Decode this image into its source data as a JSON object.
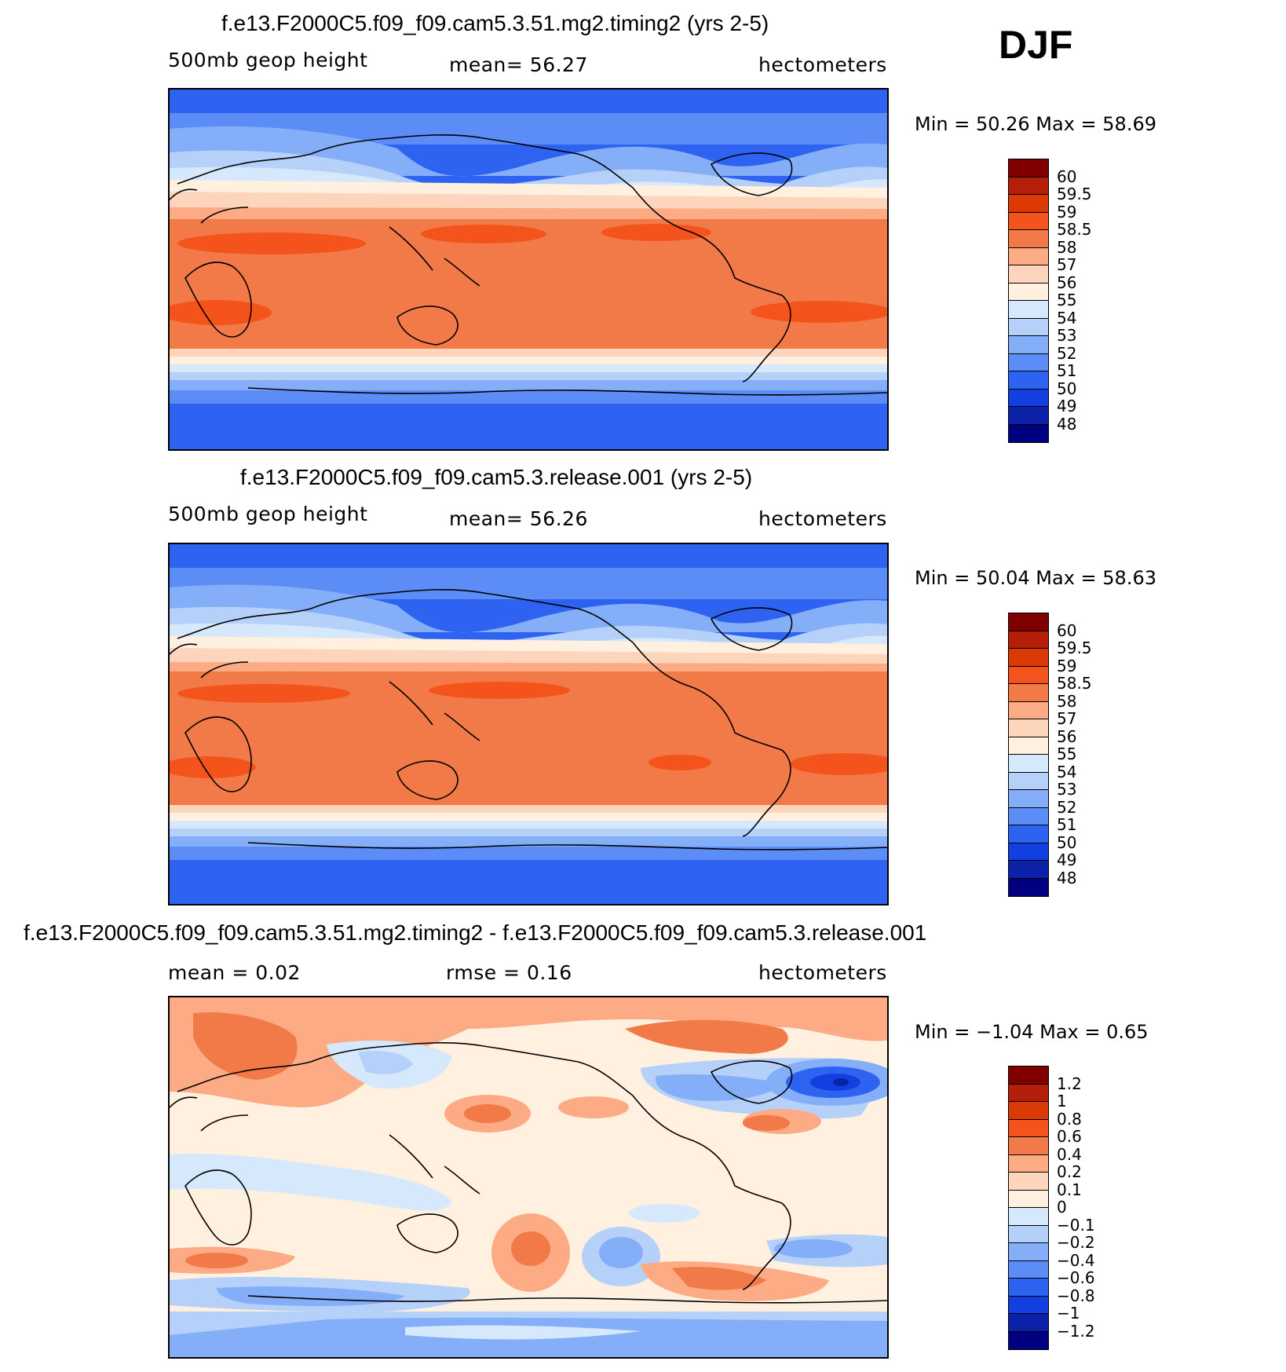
{
  "season": "DJF",
  "panels": [
    {
      "title": "f.e13.F2000C5.f09_f09.cam5.3.51.mg2.timing2 (yrs 2-5)",
      "left_label": "500mb geop height",
      "center_label": "mean=   56.27",
      "right_label": "hectometers",
      "min_max": "Min =    50.26  Max =    58.69",
      "colorbar": {
        "colors": [
          "#800000",
          "#b51f09",
          "#db3a06",
          "#f4541b",
          "#f27a48",
          "#fcab84",
          "#fdd5bd",
          "#fff0e0",
          "#d6e8fb",
          "#b5d1fa",
          "#84aef7",
          "#5c8cf6",
          "#2e63f2",
          "#123fdf",
          "#0b22a8",
          "#000080"
        ],
        "labels": [
          "60",
          "59.5",
          "59",
          "58.5",
          "58",
          "57",
          "56",
          "55",
          "54",
          "53",
          "52",
          "51",
          "50",
          "49",
          "48"
        ]
      }
    },
    {
      "title": "f.e13.F2000C5.f09_f09.cam5.3.release.001 (yrs 2-5)",
      "left_label": "500mb geop height",
      "center_label": "mean=   56.26",
      "right_label": "hectometers",
      "min_max": "Min =    50.04  Max =    58.63",
      "colorbar": {
        "colors": [
          "#800000",
          "#b51f09",
          "#db3a06",
          "#f4541b",
          "#f27a48",
          "#fcab84",
          "#fdd5bd",
          "#fff0e0",
          "#d6e8fb",
          "#b5d1fa",
          "#84aef7",
          "#5c8cf6",
          "#2e63f2",
          "#123fdf",
          "#0b22a8",
          "#000080"
        ],
        "labels": [
          "60",
          "59.5",
          "59",
          "58.5",
          "58",
          "57",
          "56",
          "55",
          "54",
          "53",
          "52",
          "51",
          "50",
          "49",
          "48"
        ]
      }
    },
    {
      "title": "f.e13.F2000C5.f09_f09.cam5.3.51.mg2.timing2 - f.e13.F2000C5.f09_f09.cam5.3.release.001",
      "left_label": "mean =     0.02",
      "center_label": "rmse =     0.16",
      "right_label": "hectometers",
      "min_max": "Min =   −1.04  Max =     0.65",
      "colorbar": {
        "colors": [
          "#800000",
          "#b51f09",
          "#db3a06",
          "#f4541b",
          "#f27a48",
          "#fcab84",
          "#fdd5bd",
          "#fff0e0",
          "#d6e8fb",
          "#b5d1fa",
          "#84aef7",
          "#5c8cf6",
          "#2e63f2",
          "#123fdf",
          "#0b22a8",
          "#000080"
        ],
        "labels": [
          "1.2",
          "1",
          "0.8",
          "0.6",
          "0.4",
          "0.2",
          "0.1",
          "0",
          "−0.1",
          "−0.2",
          "−0.4",
          "−0.6",
          "−0.8",
          "−1",
          "−1.2"
        ]
      }
    }
  ]
}
